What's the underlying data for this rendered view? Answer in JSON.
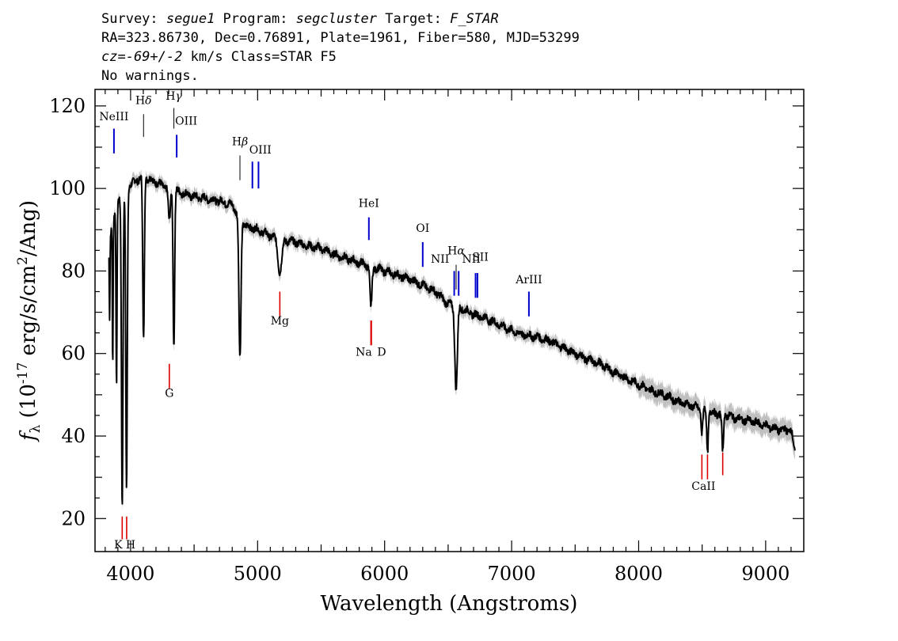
{
  "header": {
    "line1": {
      "survey_label": "Survey: ",
      "survey": "segue1",
      "program_label": " Program: ",
      "program": "segcluster",
      "target_label": " Target: ",
      "target": "F_STAR"
    },
    "line2": "RA=323.86730, Dec=0.76891, Plate=1961, Fiber=580, MJD=53299",
    "line3": {
      "cz_label": "cz=",
      "cz_value": "-69+/-2",
      "cz_unit": " km/s",
      "class_text": " Class=STAR F5"
    },
    "line4": "No warnings."
  },
  "chart_data": {
    "type": "line",
    "title": "",
    "xlabel": "Wavelength (Angstroms)",
    "ylabel": "f_λ (10^-17 erg/s/cm^2/Ang)",
    "xlim": [
      3720,
      9300
    ],
    "ylim": [
      12,
      124
    ],
    "x_ticks": [
      4000,
      5000,
      6000,
      7000,
      8000,
      9000
    ],
    "y_ticks": [
      20,
      40,
      60,
      80,
      100,
      120
    ],
    "grid": false,
    "spectrum": {
      "color": "#000000",
      "error_band_color": "#c0c0c0",
      "continuum": [
        [
          3830,
          88
        ],
        [
          3900,
          97
        ],
        [
          3950,
          99
        ],
        [
          4000,
          101
        ],
        [
          4050,
          102
        ],
        [
          4100,
          103
        ],
        [
          4200,
          101.5
        ],
        [
          4300,
          100
        ],
        [
          4400,
          99
        ],
        [
          4500,
          98
        ],
        [
          4600,
          97.5
        ],
        [
          4700,
          97
        ],
        [
          4800,
          96
        ],
        [
          4900,
          91
        ],
        [
          5000,
          90
        ],
        [
          5100,
          88.5
        ],
        [
          5200,
          87.5
        ],
        [
          5300,
          87
        ],
        [
          5400,
          86
        ],
        [
          5500,
          85.5
        ],
        [
          5600,
          84
        ],
        [
          5700,
          83
        ],
        [
          5800,
          82
        ],
        [
          5900,
          81
        ],
        [
          6000,
          80
        ],
        [
          6100,
          79
        ],
        [
          6200,
          78
        ],
        [
          6300,
          76.5
        ],
        [
          6400,
          75
        ],
        [
          6500,
          72
        ],
        [
          6600,
          71
        ],
        [
          6700,
          69.5
        ],
        [
          6800,
          68.5
        ],
        [
          6900,
          67
        ],
        [
          7000,
          65.5
        ],
        [
          7100,
          64.5
        ],
        [
          7200,
          64
        ],
        [
          7300,
          63
        ],
        [
          7400,
          61.5
        ],
        [
          7500,
          60
        ],
        [
          7600,
          58.5
        ],
        [
          7700,
          57.5
        ],
        [
          7800,
          55.5
        ],
        [
          7900,
          54
        ],
        [
          8000,
          52.5
        ],
        [
          8100,
          51
        ],
        [
          8200,
          50
        ],
        [
          8300,
          48.5
        ],
        [
          8400,
          47.5
        ],
        [
          8500,
          46.5
        ],
        [
          8600,
          45.5
        ],
        [
          8700,
          45
        ],
        [
          8800,
          44
        ],
        [
          8900,
          43.5
        ],
        [
          9000,
          42.5
        ],
        [
          9100,
          41.5
        ],
        [
          9200,
          41.5
        ],
        [
          9230,
          36
        ]
      ],
      "absorption_lines": [
        {
          "name": "H8",
          "wavelength": 3889,
          "depth": 44,
          "width": 4
        },
        {
          "name": "H7",
          "wavelength": 3859,
          "depth": 35,
          "width": 3
        },
        {
          "name": "H9",
          "wavelength": 3835,
          "depth": 20,
          "width": 3
        },
        {
          "name": "CaII K",
          "wavelength": 3934,
          "depth": 75,
          "width": 6
        },
        {
          "name": "CaII H",
          "wavelength": 3968,
          "depth": 72,
          "width": 6
        },
        {
          "name": "Hδ",
          "wavelength": 4102,
          "depth": 40,
          "width": 6
        },
        {
          "name": "Hγ",
          "wavelength": 4341,
          "depth": 38,
          "width": 6
        },
        {
          "name": "G band",
          "wavelength": 4305,
          "depth": 8,
          "width": 8
        },
        {
          "name": "Hβ",
          "wavelength": 4861,
          "depth": 34,
          "width": 8
        },
        {
          "name": "Mg",
          "wavelength": 5175,
          "depth": 8,
          "width": 15
        },
        {
          "name": "Na D",
          "wavelength": 5892,
          "depth": 10,
          "width": 8
        },
        {
          "name": "Hα",
          "wavelength": 6563,
          "depth": 20,
          "width": 10
        },
        {
          "name": "CaII 8498",
          "wavelength": 8498,
          "depth": 6,
          "width": 6
        },
        {
          "name": "CaII 8542",
          "wavelength": 8542,
          "depth": 10,
          "width": 6
        },
        {
          "name": "CaII 8662",
          "wavelength": 8662,
          "depth": 9,
          "width": 6
        }
      ]
    },
    "emission_markers": [
      {
        "label": "NeIII",
        "x": 3869,
        "y_top": 114.5,
        "y_bottom": 108.5,
        "label_y": 116.5
      },
      {
        "label": "Hδ",
        "x": 4102,
        "y_top": 118,
        "y_bottom": 112.5,
        "label_y": 120.5
      },
      {
        "label": "Hγ",
        "x": 4341,
        "y_top": 119.5,
        "y_bottom": 114.5,
        "label_y": 121.5
      },
      {
        "label": "OIII",
        "x": 4363,
        "y_top": 113,
        "y_bottom": 107.5,
        "label_y": 115.5
      },
      {
        "label": "Hβ",
        "x": 4861,
        "y_top": 108,
        "y_bottom": 102,
        "label_y": 110.5
      },
      {
        "label": "OIII",
        "x": 4959,
        "y_top": 106.5,
        "y_bottom": 100,
        "label_y": 108.5
      },
      {
        "label": "OIII",
        "x": 5007,
        "y_top": 106.5,
        "y_bottom": 100,
        "label_y": null
      },
      {
        "label": "HeI",
        "x": 5876,
        "y_top": 93,
        "y_bottom": 87.5,
        "label_y": 95.5
      },
      {
        "label": "OI",
        "x": 6300,
        "y_top": 87,
        "y_bottom": 81,
        "label_y": 89.5
      },
      {
        "label": "NII",
        "x": 6548,
        "y_top": 80,
        "y_bottom": 74,
        "label_y": 82
      },
      {
        "label": "Hα",
        "x": 6563,
        "y_top": 81.5,
        "y_bottom": 75.5,
        "label_y": 84
      },
      {
        "label": "NII",
        "x": 6583,
        "y_top": 80,
        "y_bottom": 74,
        "label_y": 82
      },
      {
        "label": "SII",
        "x": 6716,
        "y_top": 79.5,
        "y_bottom": 73.5,
        "label_y": 82.5
      },
      {
        "label": "SII",
        "x": 6731,
        "y_top": 79.5,
        "y_bottom": 73.5,
        "label_y": null
      },
      {
        "label": "ArIII",
        "x": 7136,
        "y_top": 75,
        "y_bottom": 69,
        "label_y": 77
      }
    ],
    "absorption_markers": [
      {
        "label": "K",
        "x": 3934,
        "y_top": 20.5,
        "y_bottom": 15,
        "label_y": 12.8
      },
      {
        "label": "H",
        "x": 3969,
        "y_top": 20.5,
        "y_bottom": 15,
        "label_y": 12.8
      },
      {
        "label": "G",
        "x": 4305,
        "y_top": 57.5,
        "y_bottom": 51.5,
        "label_y": 49.5
      },
      {
        "label": "Mg",
        "x": 5175,
        "y_top": 75,
        "y_bottom": 69,
        "label_y": 67
      },
      {
        "label": "Na",
        "x": 5892,
        "y_top": 68,
        "y_bottom": 62,
        "label_y": 59.5
      },
      {
        "label": "D",
        "x": 5896,
        "y_top": 68,
        "y_bottom": 62,
        "label_y": 59.5
      },
      {
        "label": "CaII",
        "x": 8498,
        "y_top": 35.5,
        "y_bottom": 29.5,
        "label_y": 27
      },
      {
        "label": "CaII",
        "x": 8542,
        "y_top": 35.5,
        "y_bottom": 29.5,
        "label_y": null
      },
      {
        "label": "CaII",
        "x": 8662,
        "y_top": 36,
        "y_bottom": 30.5,
        "label_y": null
      }
    ],
    "marker_colors": {
      "emission": "#0000cc",
      "absorption": "#dd0000",
      "hydrogen": "#000000"
    }
  }
}
